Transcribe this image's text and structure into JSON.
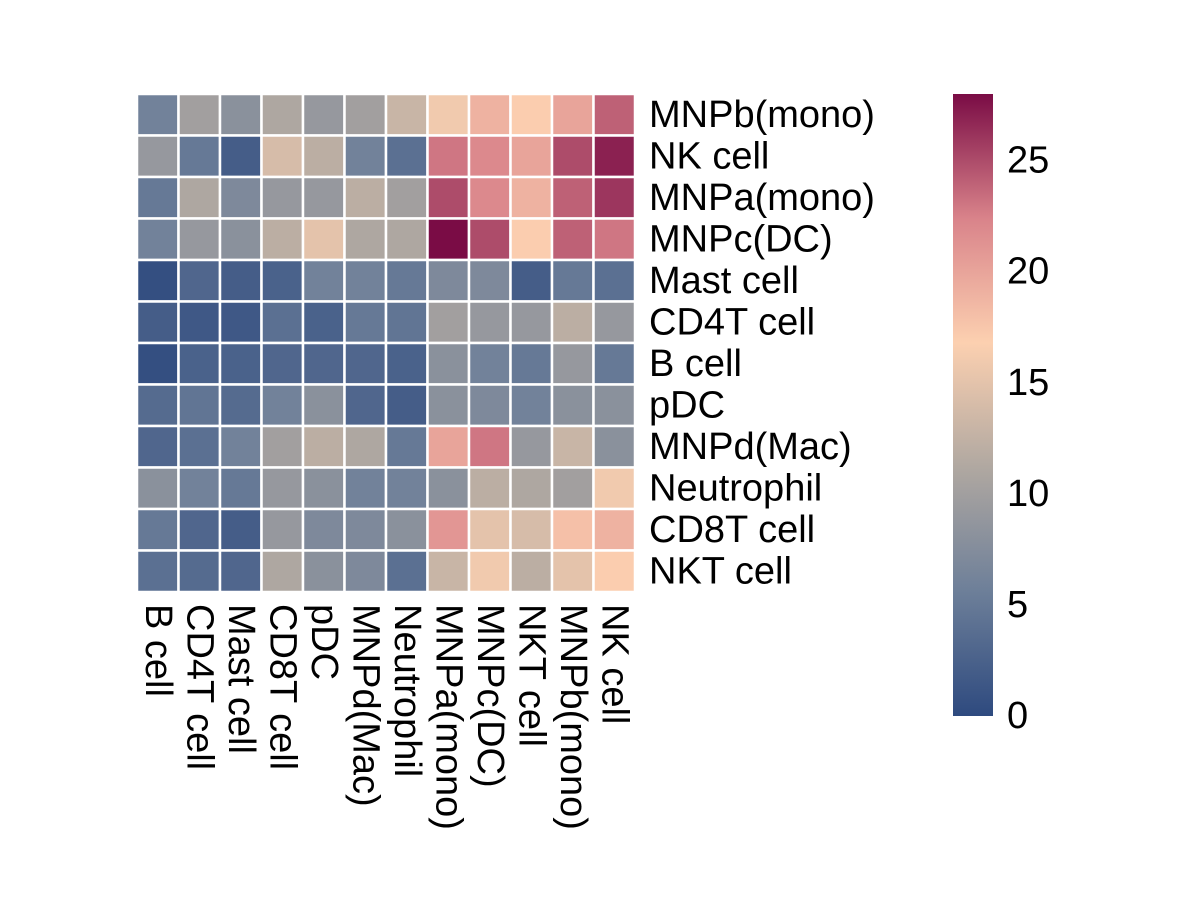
{
  "chart_data": {
    "type": "heatmap",
    "x_categories": [
      "B cell",
      "CD4T cell",
      "Mast cell",
      "CD8T cell",
      "pDC",
      "MNPd(Mac)",
      "Neutrophil",
      "MNPa(mono)",
      "MNPc(DC)",
      "NKT cell",
      "MNPb(mono)",
      "NK cell"
    ],
    "y_categories": [
      "MNPb(mono)",
      "NK cell",
      "MNPa(mono)",
      "MNPc(DC)",
      "Mast cell",
      "CD4T cell",
      "B cell",
      "pDC",
      "MNPd(Mac)",
      "Neutrophil",
      "CD8T cell",
      "NKT cell"
    ],
    "values": [
      [
        6,
        10,
        8,
        11,
        9,
        10,
        13,
        16,
        19,
        17,
        20,
        24
      ],
      [
        9,
        5,
        2,
        14,
        12,
        6,
        4,
        23,
        22,
        20,
        25,
        27
      ],
      [
        5,
        11,
        7,
        9,
        9,
        12,
        10,
        25,
        22,
        19,
        24,
        26
      ],
      [
        6,
        9,
        8,
        12,
        15,
        11,
        11,
        28,
        25,
        17,
        24,
        23
      ],
      [
        0.5,
        3,
        2,
        2.5,
        6,
        6,
        5,
        7,
        7,
        2,
        5,
        4
      ],
      [
        2,
        1.5,
        1.5,
        4,
        2.5,
        5,
        4.5,
        10,
        9,
        9,
        12,
        9
      ],
      [
        0.5,
        2.5,
        2.5,
        3,
        3,
        3,
        2.5,
        8,
        6,
        5,
        9,
        5
      ],
      [
        3.5,
        4.5,
        3.5,
        6,
        8,
        3,
        2,
        8,
        7,
        6,
        8,
        8
      ],
      [
        3,
        4,
        6,
        10,
        12,
        11,
        5,
        20,
        23,
        9,
        13,
        8
      ],
      [
        8,
        6,
        5,
        9,
        8,
        6,
        6,
        8,
        12,
        11,
        10,
        16
      ],
      [
        5,
        3,
        2,
        9,
        7,
        7,
        8,
        21,
        15,
        14,
        18,
        19
      ],
      [
        4,
        3.5,
        3,
        11,
        8,
        7,
        4,
        13,
        16,
        12,
        15,
        17
      ]
    ],
    "colorbar": {
      "min": 0,
      "max": 28,
      "ticks": [
        0,
        5,
        10,
        15,
        20,
        25
      ],
      "colors": [
        "#2e4a7f",
        "#6d7f99",
        "#b0a8a1",
        "#fcd0b0",
        "#d9838a",
        "#7a0c45"
      ]
    }
  }
}
